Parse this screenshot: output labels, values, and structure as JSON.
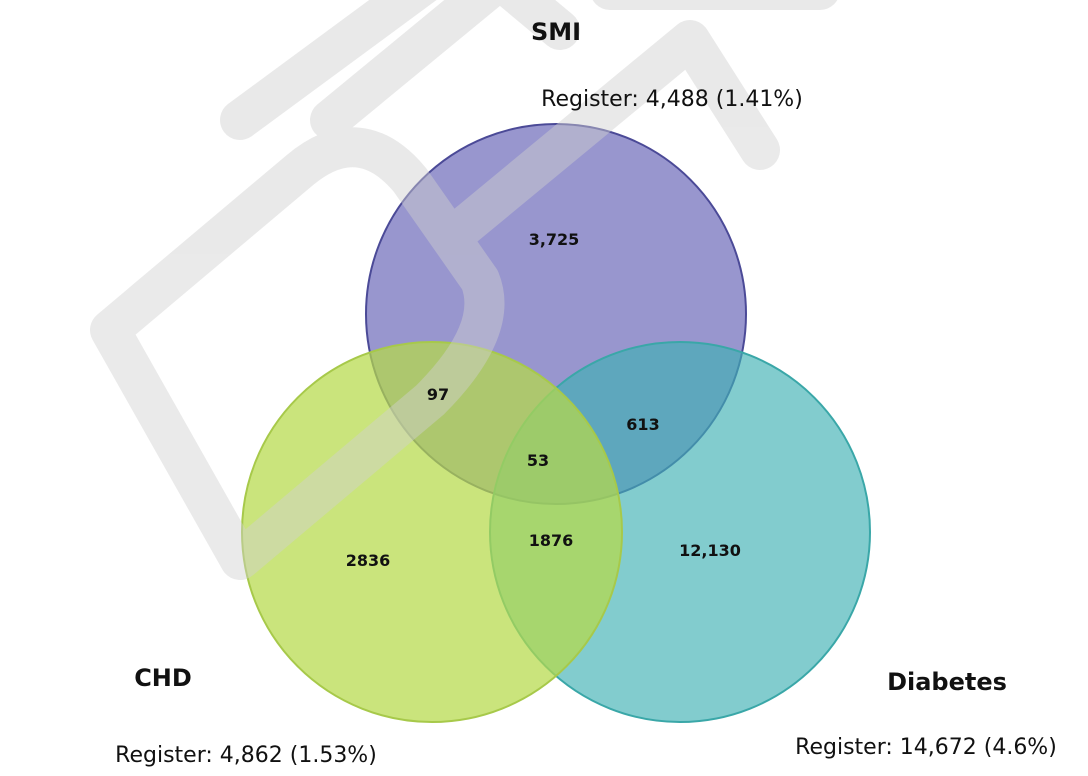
{
  "sets": {
    "smi": {
      "title": "SMI",
      "register": "Register: 4,488 (1.41%)",
      "color": "#7B78C0"
    },
    "chd": {
      "title": "CHD",
      "register": "Register: 4,862 (1.53%)",
      "color": "#BFDE5A"
    },
    "diabetes": {
      "title": "Diabetes",
      "register": "Register: 14,672 (4.6%)",
      "color": "#55BCBE"
    }
  },
  "regions": {
    "smi_only": "3,725",
    "smi_chd": "97",
    "smi_diabetes": "613",
    "all_three": "53",
    "chd_only": "2836",
    "chd_diabetes": "1876",
    "diabetes_only": "12,130"
  },
  "watermark": "DRAFT",
  "colors": {
    "smi_outline": "#4B4A97",
    "chd_outline": "#A7C94A",
    "diabetes_outline": "#3AA7A8",
    "watermark": "#D9D9D9",
    "text": "#111111"
  }
}
